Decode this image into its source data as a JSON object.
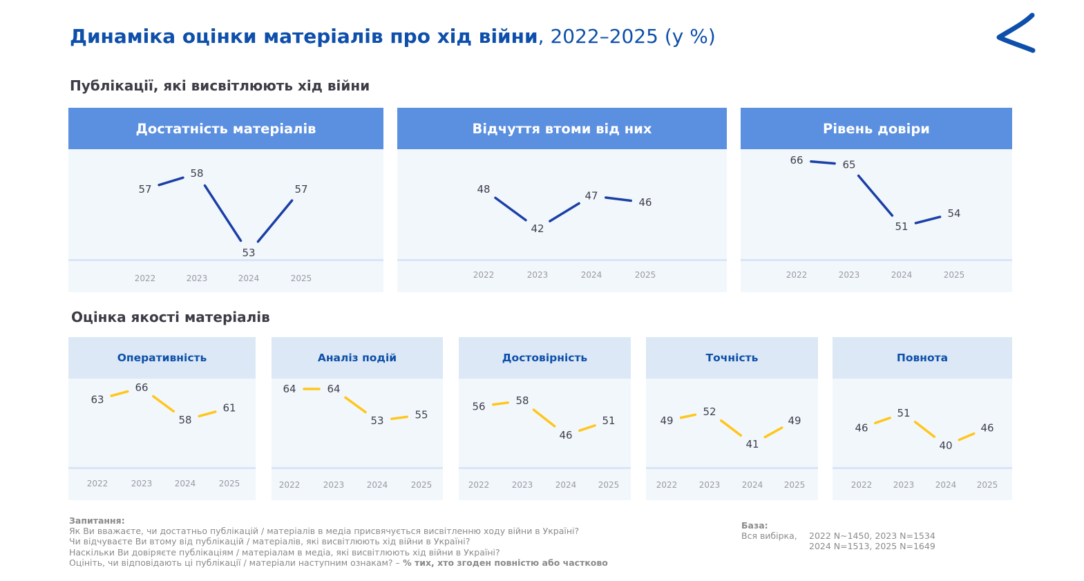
{
  "title": {
    "main": "Динаміка оцінки матеріалів про хід війни",
    "sub": ", 2022–2025 (у %)"
  },
  "colors": {
    "title": "#0d4faa",
    "header_big": "#5b8fe0",
    "header_small": "#dce8f5",
    "panel_bg": "#f2f7fc",
    "line_top": "#1a3fa6",
    "line_bottom": "#ffc61a"
  },
  "sections": {
    "top": "Публікації, які висвітлюють хід війни",
    "bottom": "Оцінка якості матеріалів"
  },
  "chart_data": [
    {
      "type": "line",
      "title": "Достатність матеріалів",
      "categories": [
        "2022",
        "2023",
        "2024",
        "2025"
      ],
      "values": [
        57,
        58,
        53,
        57
      ]
    },
    {
      "type": "line",
      "title": "Відчуття втоми від них",
      "categories": [
        "2022",
        "2023",
        "2024",
        "2025"
      ],
      "values": [
        48,
        42,
        47,
        46
      ]
    },
    {
      "type": "line",
      "title": "Рівень довіри",
      "categories": [
        "2022",
        "2023",
        "2024",
        "2025"
      ],
      "values": [
        66,
        65,
        51,
        54
      ]
    },
    {
      "type": "line",
      "title": "Оперативність",
      "categories": [
        "2022",
        "2023",
        "2024",
        "2025"
      ],
      "values": [
        63,
        66,
        58,
        61
      ]
    },
    {
      "type": "line",
      "title": "Аналіз подій",
      "categories": [
        "2022",
        "2023",
        "2024",
        "2025"
      ],
      "values": [
        64,
        64,
        53,
        55
      ]
    },
    {
      "type": "line",
      "title": "Достовірність",
      "categories": [
        "2022",
        "2023",
        "2024",
        "2025"
      ],
      "values": [
        56,
        58,
        46,
        51
      ]
    },
    {
      "type": "line",
      "title": "Точність",
      "categories": [
        "2022",
        "2023",
        "2024",
        "2025"
      ],
      "values": [
        49,
        52,
        41,
        49
      ]
    },
    {
      "type": "line",
      "title": "Повнота",
      "categories": [
        "2022",
        "2023",
        "2024",
        "2025"
      ],
      "values": [
        46,
        51,
        40,
        46
      ]
    }
  ],
  "footer": {
    "question_label": "Запитання:",
    "questions": [
      "Як Ви вважаєте, чи достатньо публікацій / матеріалів в медіа присвячується висвітленню ходу війни в Україні?",
      "Чи відчуваєте Ви втому від публікацій / матеріалів, які висвітлюють хід війни в Україні?",
      "Наскільки Ви довіряєте публікаціям / матеріалам в медіа, які висвітлюють хід війни в Україні?"
    ],
    "last_question": "Оцініть, чи відповідають ці публікації / матеріали наступним ознакам? –",
    "last_question_bold": " % тих, хто згоден повністю або частково",
    "base_label": "База:",
    "base_sample": "Вся вибірка,",
    "base_line1": "2022 N~1450, 2023 N=1534",
    "base_line2": "2024 N=1513, 2025 N=1649"
  }
}
